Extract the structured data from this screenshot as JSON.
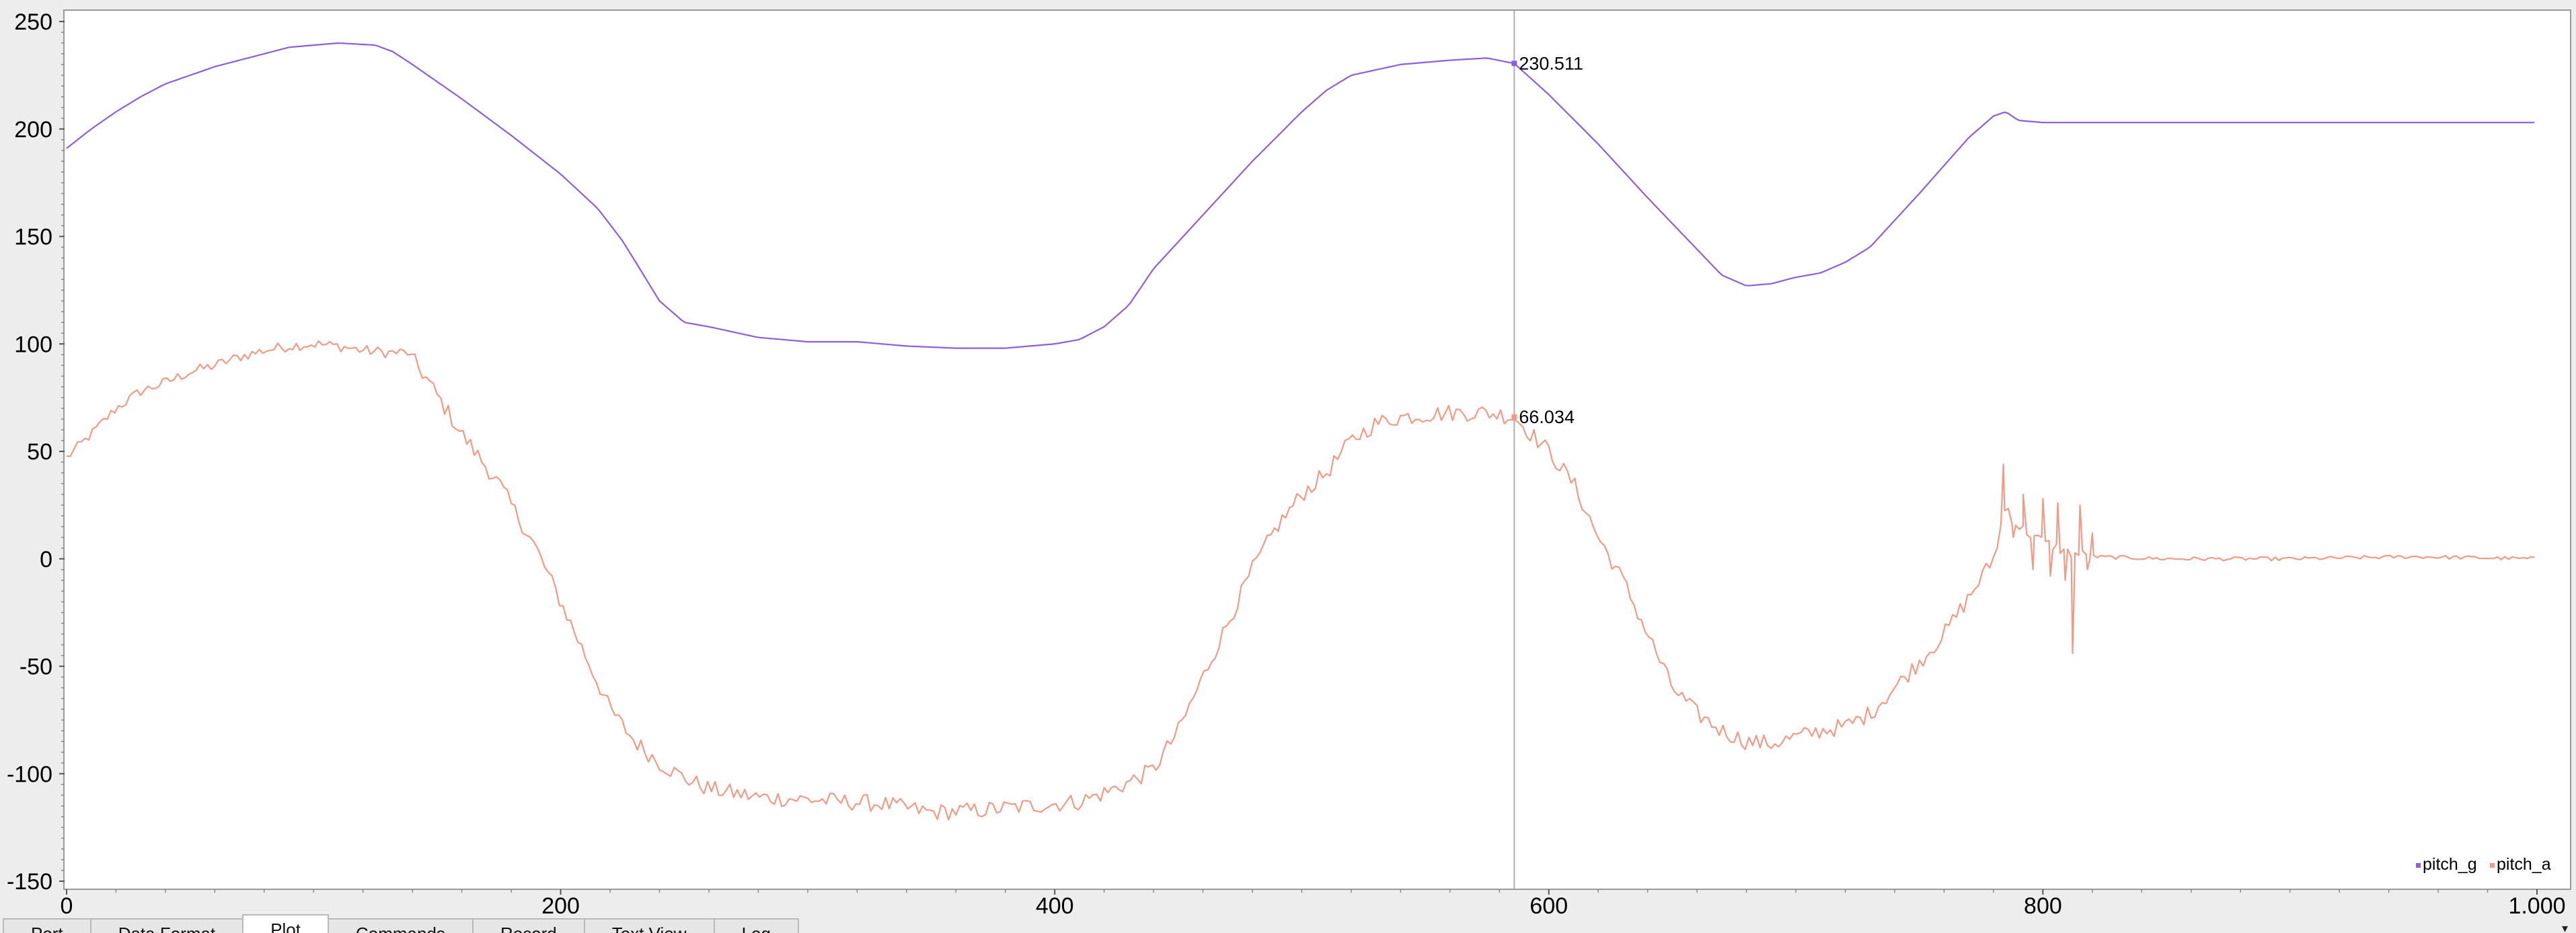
{
  "tabs": [
    {
      "label": "Port",
      "active": false
    },
    {
      "label": "Data Format",
      "active": false
    },
    {
      "label": "Plot",
      "active": true
    },
    {
      "label": "Commands",
      "active": false
    },
    {
      "label": "Record",
      "active": false
    },
    {
      "label": "Text View",
      "active": false
    },
    {
      "label": "Log",
      "active": false
    }
  ],
  "chart_data": {
    "type": "line",
    "title": "",
    "xlabel": "",
    "ylabel": "",
    "xlim": [
      0,
      1000
    ],
    "ylim": [
      -150,
      250
    ],
    "x_ticks": [
      0,
      200,
      400,
      600,
      800,
      1000
    ],
    "x_tick_labels": [
      "0",
      "200",
      "400",
      "600",
      "800",
      "1.000"
    ],
    "y_ticks": [
      250,
      200,
      150,
      100,
      50,
      0,
      -50,
      -100,
      -150
    ],
    "y_tick_labels": [
      "250",
      "200",
      "150",
      "100",
      "50",
      "0",
      "-50",
      "-100",
      "-150"
    ],
    "grid": false,
    "legend_position": "bottom-right",
    "cursor": {
      "x": 586,
      "readouts": [
        {
          "series": "pitch_g",
          "value": 230.511,
          "label": "230.511"
        },
        {
          "series": "pitch_a",
          "value": 66.034,
          "label": "66.034"
        }
      ]
    },
    "series": [
      {
        "name": "pitch_g",
        "color": "#8a5fe0",
        "noise": 0,
        "points": [
          [
            0,
            191
          ],
          [
            10,
            200
          ],
          [
            20,
            208
          ],
          [
            30,
            215
          ],
          [
            40,
            221
          ],
          [
            50,
            225
          ],
          [
            60,
            229
          ],
          [
            70,
            232
          ],
          [
            80,
            235
          ],
          [
            90,
            238
          ],
          [
            100,
            239
          ],
          [
            110,
            240
          ],
          [
            125,
            239
          ],
          [
            132,
            236
          ],
          [
            140,
            230
          ],
          [
            160,
            214
          ],
          [
            180,
            197
          ],
          [
            200,
            179
          ],
          [
            215,
            163
          ],
          [
            225,
            148
          ],
          [
            232,
            135
          ],
          [
            240,
            120
          ],
          [
            250,
            110
          ],
          [
            260,
            108
          ],
          [
            280,
            103
          ],
          [
            300,
            101
          ],
          [
            320,
            101
          ],
          [
            340,
            99
          ],
          [
            360,
            98
          ],
          [
            380,
            98
          ],
          [
            400,
            100
          ],
          [
            410,
            102
          ],
          [
            420,
            108
          ],
          [
            430,
            118
          ],
          [
            440,
            135
          ],
          [
            460,
            160
          ],
          [
            480,
            185
          ],
          [
            500,
            208
          ],
          [
            510,
            218
          ],
          [
            520,
            225
          ],
          [
            540,
            230
          ],
          [
            560,
            232
          ],
          [
            575,
            233
          ],
          [
            586,
            230.5
          ],
          [
            600,
            216
          ],
          [
            620,
            193
          ],
          [
            640,
            168
          ],
          [
            660,
            144
          ],
          [
            670,
            132
          ],
          [
            680,
            127
          ],
          [
            690,
            128
          ],
          [
            700,
            131
          ],
          [
            710,
            133
          ],
          [
            720,
            138
          ],
          [
            730,
            145
          ],
          [
            750,
            170
          ],
          [
            770,
            196
          ],
          [
            780,
            206
          ],
          [
            785,
            208
          ],
          [
            790,
            204
          ],
          [
            800,
            203
          ],
          [
            850,
            203
          ],
          [
            900,
            203
          ],
          [
            950,
            203
          ],
          [
            1000,
            203
          ]
        ]
      },
      {
        "name": "pitch_a",
        "color": "#f29a86",
        "noise": 2.5,
        "points": [
          [
            0,
            47
          ],
          [
            10,
            58
          ],
          [
            20,
            70
          ],
          [
            30,
            78
          ],
          [
            40,
            82
          ],
          [
            50,
            87
          ],
          [
            60,
            90
          ],
          [
            70,
            94
          ],
          [
            80,
            97
          ],
          [
            90,
            99
          ],
          [
            100,
            100
          ],
          [
            110,
            99
          ],
          [
            120,
            97
          ],
          [
            130,
            96
          ],
          [
            138,
            96
          ],
          [
            145,
            85
          ],
          [
            160,
            58
          ],
          [
            175,
            35
          ],
          [
            190,
            5
          ],
          [
            200,
            -20
          ],
          [
            210,
            -45
          ],
          [
            220,
            -70
          ],
          [
            230,
            -85
          ],
          [
            240,
            -95
          ],
          [
            250,
            -102
          ],
          [
            260,
            -107
          ],
          [
            280,
            -111
          ],
          [
            300,
            -112
          ],
          [
            330,
            -114
          ],
          [
            350,
            -118
          ],
          [
            370,
            -117
          ],
          [
            390,
            -115
          ],
          [
            410,
            -113
          ],
          [
            420,
            -109
          ],
          [
            430,
            -104
          ],
          [
            440,
            -98
          ],
          [
            450,
            -80
          ],
          [
            460,
            -55
          ],
          [
            470,
            -30
          ],
          [
            480,
            -5
          ],
          [
            490,
            15
          ],
          [
            500,
            30
          ],
          [
            510,
            40
          ],
          [
            520,
            55
          ],
          [
            530,
            63
          ],
          [
            540,
            66
          ],
          [
            560,
            68
          ],
          [
            575,
            68
          ],
          [
            586,
            66
          ],
          [
            600,
            50
          ],
          [
            610,
            35
          ],
          [
            620,
            10
          ],
          [
            630,
            -10
          ],
          [
            640,
            -35
          ],
          [
            650,
            -60
          ],
          [
            660,
            -72
          ],
          [
            670,
            -80
          ],
          [
            680,
            -85
          ],
          [
            690,
            -86
          ],
          [
            700,
            -83
          ],
          [
            710,
            -80
          ],
          [
            720,
            -78
          ],
          [
            730,
            -72
          ],
          [
            740,
            -60
          ],
          [
            750,
            -48
          ],
          [
            760,
            -35
          ],
          [
            770,
            -18
          ],
          [
            780,
            0
          ],
          [
            785,
            25
          ],
          [
            790,
            15
          ],
          [
            800,
            8
          ],
          [
            810,
            3
          ],
          [
            820,
            1
          ],
          [
            850,
            0
          ],
          [
            900,
            0
          ],
          [
            950,
            1
          ],
          [
            1000,
            0
          ]
        ],
        "spikes": [
          [
            784,
            44
          ],
          [
            788,
            10
          ],
          [
            792,
            30
          ],
          [
            796,
            -5
          ],
          [
            800,
            28
          ],
          [
            803,
            -8
          ],
          [
            806,
            26
          ],
          [
            809,
            -10
          ],
          [
            812,
            -44
          ],
          [
            815,
            25
          ],
          [
            818,
            -5
          ],
          [
            820,
            12
          ]
        ]
      }
    ]
  }
}
